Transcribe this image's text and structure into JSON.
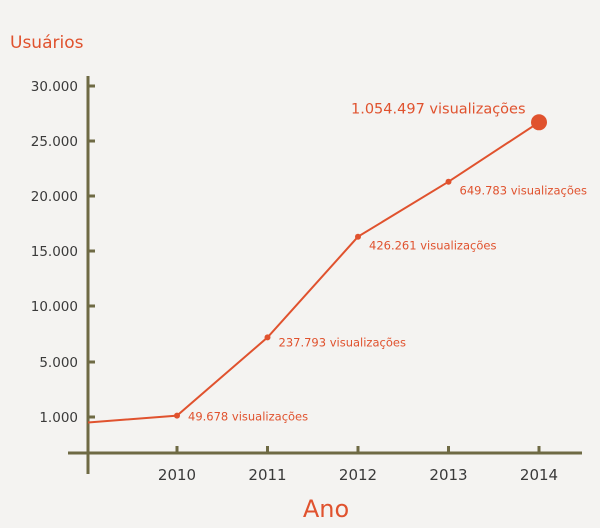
{
  "chart_data": {
    "type": "line",
    "ylabel": "Usuários",
    "xlabel": "Ano",
    "y_ticks": [
      "30.000",
      "25.000",
      "20.000",
      "15.000",
      "10.000",
      "5.000",
      "1.000"
    ],
    "x_ticks": [
      "2010",
      "2011",
      "2012",
      "2013",
      "2014"
    ],
    "grid": false,
    "colors": {
      "line": "#e0522e",
      "axis": "#6e6a44",
      "text": "#3a3a3a"
    },
    "points": [
      {
        "x": "2009",
        "y": 600,
        "label": ""
      },
      {
        "x": "2010",
        "y": 1100,
        "label": "49.678 visualizações"
      },
      {
        "x": "2011",
        "y": 7200,
        "label": "237.793 visualizações"
      },
      {
        "x": "2012",
        "y": 16300,
        "label": "426.261 visualizações"
      },
      {
        "x": "2013",
        "y": 21300,
        "label": "649.783 visualizações"
      },
      {
        "x": "2014",
        "y": 26700,
        "label": "1.054.497 visualizações"
      }
    ]
  }
}
